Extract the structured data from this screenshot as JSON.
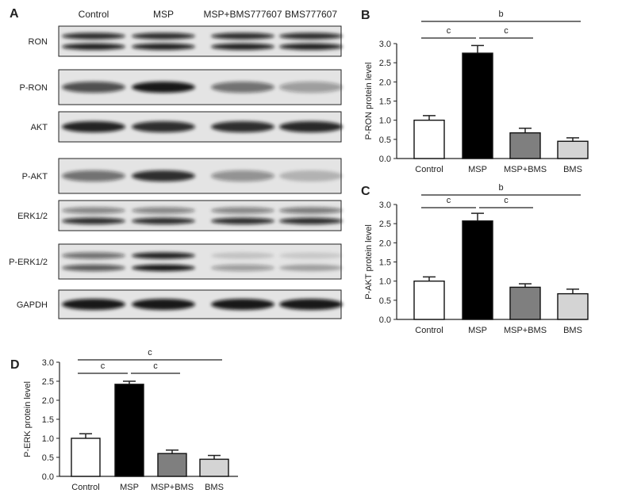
{
  "panel_a": {
    "letter": "A",
    "lane_labels": [
      "Control",
      "MSP",
      "MSP+BMS777607",
      "BMS777607"
    ],
    "blots": [
      {
        "label": "RON",
        "bands": [
          [
            0.85,
            0.9
          ],
          [
            0.85,
            0.9
          ],
          [
            0.85,
            0.9
          ],
          [
            0.85,
            0.9
          ]
        ],
        "two_band": true
      },
      {
        "label": "P-RON",
        "bands": [
          0.7,
          0.95,
          0.55,
          0.35
        ],
        "two_band": false
      },
      {
        "label": "AKT",
        "bands": [
          0.9,
          0.85,
          0.85,
          0.88
        ],
        "two_band": false
      },
      {
        "label": "P-AKT",
        "bands": [
          0.55,
          0.85,
          0.4,
          0.22
        ],
        "two_band": false
      },
      {
        "label": "ERK1/2",
        "bands": [
          [
            0.45,
            0.85
          ],
          [
            0.45,
            0.85
          ],
          [
            0.45,
            0.85
          ],
          [
            0.5,
            0.85
          ]
        ],
        "two_band": true
      },
      {
        "label": "P-ERK1/2",
        "bands": [
          [
            0.55,
            0.65
          ],
          [
            0.9,
            0.95
          ],
          [
            0.15,
            0.35
          ],
          [
            0.12,
            0.3
          ]
        ],
        "two_band": true
      },
      {
        "label": "GAPDH",
        "bands": [
          0.95,
          0.95,
          0.95,
          0.95
        ],
        "two_band": false
      }
    ]
  },
  "chart_data": [
    {
      "panel": "B",
      "type": "bar",
      "ylabel": "P-RON protein level",
      "categories": [
        "Control",
        "MSP",
        "MSP+BMS",
        "BMS"
      ],
      "values": [
        1.0,
        2.75,
        0.67,
        0.45
      ],
      "errors": [
        0.12,
        0.2,
        0.12,
        0.09
      ],
      "ylim": [
        0,
        3.0
      ],
      "yticks": [
        "0.0",
        "0.5",
        "1.0",
        "1.5",
        "2.0",
        "2.5",
        "3.0"
      ],
      "bar_colors": [
        "#ffffff",
        "#000000",
        "#7f7f7f",
        "#d4d4d4"
      ],
      "significance": [
        {
          "from": 0,
          "to": 3,
          "label": "b"
        },
        {
          "from": 0,
          "to": 1,
          "label": "c"
        },
        {
          "from": 1,
          "to": 2,
          "label": "c"
        }
      ]
    },
    {
      "panel": "C",
      "type": "bar",
      "ylabel": "P-AKT protein level",
      "categories": [
        "Control",
        "MSP",
        "MSP+BMS",
        "BMS"
      ],
      "values": [
        1.0,
        2.57,
        0.84,
        0.67
      ],
      "errors": [
        0.11,
        0.2,
        0.09,
        0.12
      ],
      "ylim": [
        0,
        3.0
      ],
      "yticks": [
        "0.0",
        "0.5",
        "1.0",
        "1.5",
        "2.0",
        "2.5",
        "3.0"
      ],
      "bar_colors": [
        "#ffffff",
        "#000000",
        "#7f7f7f",
        "#d4d4d4"
      ],
      "significance": [
        {
          "from": 0,
          "to": 3,
          "label": "b"
        },
        {
          "from": 0,
          "to": 1,
          "label": "c"
        },
        {
          "from": 1,
          "to": 2,
          "label": "c"
        }
      ]
    },
    {
      "panel": "D",
      "type": "bar",
      "ylabel": "P-ERK protein level",
      "categories": [
        "Control",
        "MSP",
        "MSP+BMS",
        "BMS"
      ],
      "values": [
        1.0,
        2.42,
        0.6,
        0.45
      ],
      "errors": [
        0.12,
        0.08,
        0.09,
        0.1
      ],
      "ylim": [
        0,
        3.0
      ],
      "yticks": [
        "0.0",
        "0.5",
        "1.0",
        "1.5",
        "2.0",
        "2.5",
        "3.0"
      ],
      "bar_colors": [
        "#ffffff",
        "#000000",
        "#7f7f7f",
        "#d4d4d4"
      ],
      "significance": [
        {
          "from": 0,
          "to": 3,
          "label": "c"
        },
        {
          "from": 0,
          "to": 1,
          "label": "c"
        },
        {
          "from": 1,
          "to": 2,
          "label": "c"
        }
      ]
    }
  ]
}
